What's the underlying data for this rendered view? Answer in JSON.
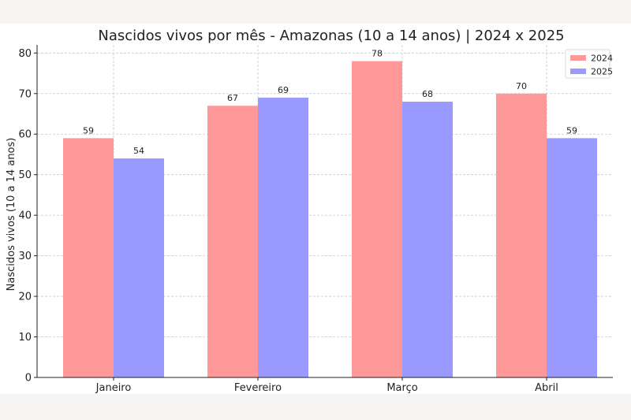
{
  "chart_data": {
    "type": "bar",
    "title": "Nascidos vivos por mês - Amazonas (10 a 14 anos) | 2024 x 2025",
    "xlabel": "",
    "ylabel": "Nascidos vivos (10 a 14 anos)",
    "categories": [
      "Janeiro",
      "Fevereiro",
      "Março",
      "Abril"
    ],
    "series": [
      {
        "name": "2024",
        "values": [
          59,
          67,
          78,
          70
        ],
        "color": "#ff9999"
      },
      {
        "name": "2025",
        "values": [
          54,
          69,
          68,
          59
        ],
        "color": "#9999ff"
      }
    ],
    "ylim": [
      0,
      82
    ],
    "yticks": [
      0,
      10,
      20,
      30,
      40,
      50,
      60,
      70,
      80
    ],
    "grid": true,
    "legend_position": "top-right"
  }
}
